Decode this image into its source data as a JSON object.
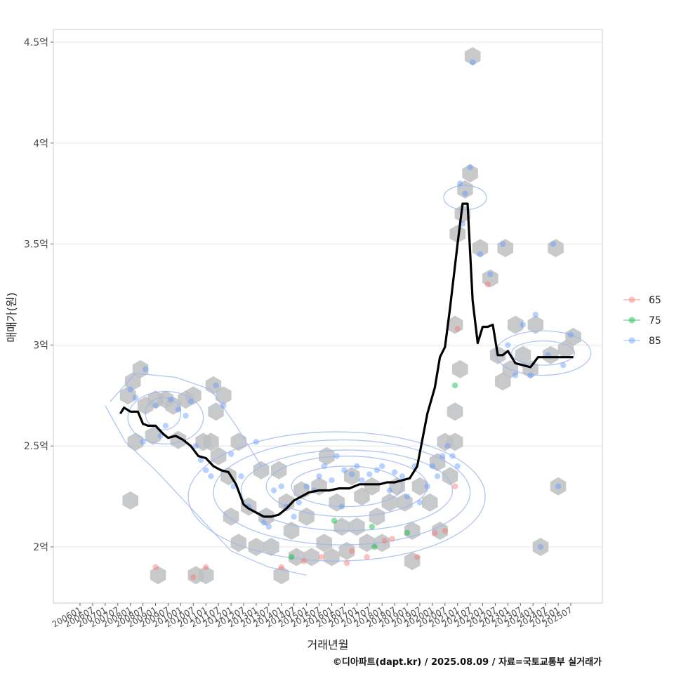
{
  "chart_data": {
    "type": "scatter",
    "title": "",
    "xlabel": "거래년월",
    "ylabel": "매매가(원)",
    "caption": "©디아파트(dapt.kr) / 2025.08.09 / 자료=국토교통부 실거래가",
    "ylim": [
      1.75,
      4.5
    ],
    "yticks": [
      {
        "value": 2.0,
        "label": "2억"
      },
      {
        "value": 2.5,
        "label": "2.5억"
      },
      {
        "value": 3.0,
        "label": "3억"
      },
      {
        "value": 3.5,
        "label": "3.5억"
      },
      {
        "value": 4.0,
        "label": "4억"
      },
      {
        "value": 4.5,
        "label": "4.5억"
      }
    ],
    "xlim": [
      2005.5,
      2027.0
    ],
    "xticks": [
      "200601",
      "200607",
      "200701",
      "200707",
      "200801",
      "200807",
      "200901",
      "200907",
      "201001",
      "201007",
      "201101",
      "201107",
      "201201",
      "201207",
      "201301",
      "201307",
      "201401",
      "201407",
      "201501",
      "201507",
      "201601",
      "201607",
      "201701",
      "201707",
      "201801",
      "201807",
      "201901",
      "201907",
      "202001",
      "202007",
      "202101",
      "202107",
      "202201",
      "202207",
      "202301",
      "202307",
      "202401",
      "202407",
      "202501",
      "202507"
    ],
    "legend": {
      "title": "",
      "position": "right",
      "entries": [
        {
          "label": "65",
          "color": "#F8766D"
        },
        {
          "label": "75",
          "color": "#00BA38"
        },
        {
          "label": "85",
          "color": "#619CFF"
        }
      ]
    },
    "colors": {
      "hex": "#bdbfc2",
      "trend": "#000000",
      "contour": "#9fb5ee",
      "grid": "#e6e6e6"
    },
    "trend_line": {
      "name": "median",
      "x": [
        2007.6,
        2007.75,
        2008.0,
        2008.3,
        2008.5,
        2008.7,
        2009.0,
        2009.3,
        2009.5,
        2009.8,
        2010.1,
        2010.4,
        2010.7,
        2011.0,
        2011.3,
        2011.6,
        2011.9,
        2012.2,
        2012.5,
        2012.7,
        2013.0,
        2013.3,
        2013.6,
        2013.9,
        2014.2,
        2014.5,
        2014.8,
        2015.1,
        2015.5,
        2015.9,
        2016.3,
        2016.7,
        2017.1,
        2017.5,
        2017.9,
        2018.2,
        2018.5,
        2018.8,
        2019.1,
        2019.4,
        2019.8,
        2020.1,
        2020.3,
        2020.5,
        2020.7,
        2021.0,
        2021.2,
        2021.4,
        2021.6,
        2021.8,
        2022.0,
        2022.2,
        2022.4,
        2022.6,
        2022.8,
        2023.0,
        2023.3,
        2023.6,
        2023.9,
        2024.2,
        2024.5,
        2024.8,
        2025.1,
        2025.4,
        2025.6
      ],
      "values": [
        2.66,
        2.69,
        2.67,
        2.67,
        2.61,
        2.6,
        2.6,
        2.56,
        2.54,
        2.55,
        2.53,
        2.5,
        2.45,
        2.44,
        2.4,
        2.38,
        2.37,
        2.31,
        2.21,
        2.19,
        2.17,
        2.15,
        2.15,
        2.16,
        2.19,
        2.23,
        2.25,
        2.27,
        2.28,
        2.28,
        2.29,
        2.29,
        2.31,
        2.31,
        2.31,
        2.32,
        2.32,
        2.33,
        2.34,
        2.4,
        2.66,
        2.79,
        2.94,
        2.99,
        3.18,
        3.5,
        3.7,
        3.7,
        3.22,
        3.01,
        3.09,
        3.09,
        3.1,
        2.95,
        2.95,
        2.97,
        2.91,
        2.9,
        2.89,
        2.94,
        2.94,
        2.94,
        2.94,
        2.94,
        2.94
      ]
    },
    "series": [
      {
        "name": "65",
        "points": [
          [
            2009.0,
            1.9
          ],
          [
            2010.5,
            1.85
          ],
          [
            2011.0,
            1.9
          ],
          [
            2014.0,
            1.9
          ],
          [
            2014.9,
            1.93
          ],
          [
            2015.6,
            1.95
          ],
          [
            2016.6,
            1.92
          ],
          [
            2016.8,
            1.98
          ],
          [
            2017.4,
            1.95
          ],
          [
            2018.1,
            2.03
          ],
          [
            2018.4,
            2.04
          ],
          [
            2019.4,
            1.95
          ],
          [
            2020.1,
            2.07
          ],
          [
            2020.5,
            2.08
          ],
          [
            2020.9,
            2.3
          ],
          [
            2021.0,
            3.08
          ],
          [
            2022.2,
            3.3
          ]
        ]
      },
      {
        "name": "75",
        "points": [
          [
            2014.4,
            1.95
          ],
          [
            2016.1,
            2.13
          ],
          [
            2017.6,
            2.1
          ],
          [
            2017.7,
            2.0
          ],
          [
            2019.0,
            2.07
          ],
          [
            2020.9,
            2.8
          ]
        ]
      },
      {
        "name": "85",
        "points": [
          [
            2008.0,
            2.78
          ],
          [
            2008.2,
            2.74
          ],
          [
            2008.5,
            2.52
          ],
          [
            2008.6,
            2.88
          ],
          [
            2009.0,
            2.7
          ],
          [
            2009.2,
            2.55
          ],
          [
            2009.4,
            2.6
          ],
          [
            2009.6,
            2.73
          ],
          [
            2009.9,
            2.68
          ],
          [
            2010.2,
            2.65
          ],
          [
            2010.4,
            2.72
          ],
          [
            2010.6,
            2.5
          ],
          [
            2010.8,
            2.43
          ],
          [
            2011.0,
            2.38
          ],
          [
            2011.2,
            2.35
          ],
          [
            2011.4,
            2.8
          ],
          [
            2011.7,
            2.7
          ],
          [
            2012.0,
            2.46
          ],
          [
            2012.1,
            2.3
          ],
          [
            2012.4,
            2.35
          ],
          [
            2012.7,
            2.2
          ],
          [
            2013.0,
            2.52
          ],
          [
            2013.3,
            2.12
          ],
          [
            2013.5,
            2.1
          ],
          [
            2013.7,
            2.28
          ],
          [
            2014.0,
            2.3
          ],
          [
            2014.2,
            2.2
          ],
          [
            2014.5,
            2.15
          ],
          [
            2014.7,
            2.22
          ],
          [
            2015.0,
            2.3
          ],
          [
            2015.3,
            2.28
          ],
          [
            2015.5,
            2.35
          ],
          [
            2015.7,
            2.4
          ],
          [
            2016.0,
            2.33
          ],
          [
            2016.2,
            2.45
          ],
          [
            2016.4,
            2.2
          ],
          [
            2016.5,
            2.38
          ],
          [
            2016.8,
            2.36
          ],
          [
            2017.0,
            2.4
          ],
          [
            2017.2,
            2.33
          ],
          [
            2017.5,
            2.36
          ],
          [
            2017.8,
            2.38
          ],
          [
            2018.0,
            2.4
          ],
          [
            2018.3,
            2.28
          ],
          [
            2018.5,
            2.37
          ],
          [
            2018.8,
            2.35
          ],
          [
            2019.0,
            2.25
          ],
          [
            2019.3,
            2.4
          ],
          [
            2019.5,
            2.22
          ],
          [
            2019.8,
            2.3
          ],
          [
            2020.0,
            2.4
          ],
          [
            2020.2,
            2.35
          ],
          [
            2020.4,
            2.45
          ],
          [
            2020.6,
            2.5
          ],
          [
            2020.8,
            2.45
          ],
          [
            2021.0,
            2.4
          ],
          [
            2021.1,
            3.8
          ],
          [
            2021.2,
            3.6
          ],
          [
            2021.3,
            3.75
          ],
          [
            2021.5,
            3.88
          ],
          [
            2021.6,
            4.4
          ],
          [
            2021.9,
            3.45
          ],
          [
            2022.3,
            3.35
          ],
          [
            2022.8,
            3.5
          ],
          [
            2023.0,
            3.0
          ],
          [
            2023.3,
            2.85
          ],
          [
            2023.6,
            3.1
          ],
          [
            2023.9,
            2.85
          ],
          [
            2024.1,
            3.15
          ],
          [
            2024.3,
            2.0
          ],
          [
            2024.6,
            2.95
          ],
          [
            2024.8,
            3.5
          ],
          [
            2025.0,
            2.3
          ],
          [
            2025.2,
            2.9
          ],
          [
            2025.5,
            3.05
          ]
        ]
      }
    ],
    "hex_bins": [
      [
        2007.9,
        2.75
      ],
      [
        2008.1,
        2.82
      ],
      [
        2008.2,
        2.52
      ],
      [
        2008.4,
        2.88
      ],
      [
        2008.0,
        2.23
      ],
      [
        2008.6,
        2.7
      ],
      [
        2008.9,
        2.55
      ],
      [
        2009.0,
        2.73
      ],
      [
        2009.1,
        1.86
      ],
      [
        2009.4,
        2.73
      ],
      [
        2009.7,
        2.7
      ],
      [
        2009.9,
        2.53
      ],
      [
        2010.2,
        2.73
      ],
      [
        2010.5,
        2.75
      ],
      [
        2010.6,
        1.86
      ],
      [
        2010.9,
        2.52
      ],
      [
        2011.0,
        1.86
      ],
      [
        2011.2,
        2.52
      ],
      [
        2011.3,
        2.8
      ],
      [
        2011.4,
        2.67
      ],
      [
        2011.5,
        2.45
      ],
      [
        2011.7,
        2.75
      ],
      [
        2011.9,
        2.35
      ],
      [
        2012.3,
        2.52
      ],
      [
        2012.0,
        2.15
      ],
      [
        2012.3,
        2.02
      ],
      [
        2012.7,
        2.2
      ],
      [
        2013.0,
        2.0
      ],
      [
        2013.2,
        2.38
      ],
      [
        2013.4,
        2.15
      ],
      [
        2013.6,
        2.0
      ],
      [
        2013.9,
        2.38
      ],
      [
        2014.0,
        1.86
      ],
      [
        2014.2,
        2.22
      ],
      [
        2014.4,
        2.08
      ],
      [
        2014.6,
        1.95
      ],
      [
        2014.8,
        2.28
      ],
      [
        2015.0,
        2.15
      ],
      [
        2015.2,
        1.95
      ],
      [
        2015.5,
        2.3
      ],
      [
        2015.7,
        2.02
      ],
      [
        2015.8,
        2.45
      ],
      [
        2016.0,
        1.95
      ],
      [
        2016.2,
        2.22
      ],
      [
        2016.4,
        2.1
      ],
      [
        2016.6,
        1.98
      ],
      [
        2016.8,
        2.35
      ],
      [
        2017.0,
        2.1
      ],
      [
        2017.2,
        2.25
      ],
      [
        2017.4,
        2.02
      ],
      [
        2017.6,
        2.3
      ],
      [
        2017.8,
        2.15
      ],
      [
        2018.0,
        2.02
      ],
      [
        2018.3,
        2.22
      ],
      [
        2018.6,
        2.3
      ],
      [
        2018.9,
        2.22
      ],
      [
        2019.2,
        2.08
      ],
      [
        2019.2,
        1.93
      ],
      [
        2019.5,
        2.3
      ],
      [
        2019.9,
        2.22
      ],
      [
        2020.2,
        2.42
      ],
      [
        2020.3,
        2.08
      ],
      [
        2020.5,
        2.52
      ],
      [
        2020.7,
        2.35
      ],
      [
        2020.9,
        2.52
      ],
      [
        2020.9,
        3.1
      ],
      [
        2020.9,
        2.67
      ],
      [
        2021.1,
        2.88
      ],
      [
        2021.0,
        3.55
      ],
      [
        2021.2,
        3.65
      ],
      [
        2021.3,
        3.77
      ],
      [
        2021.5,
        3.85
      ],
      [
        2021.6,
        4.43
      ],
      [
        2021.9,
        3.48
      ],
      [
        2022.3,
        3.33
      ],
      [
        2022.9,
        3.48
      ],
      [
        2022.6,
        2.95
      ],
      [
        2022.8,
        2.82
      ],
      [
        2023.1,
        2.88
      ],
      [
        2023.3,
        3.1
      ],
      [
        2023.6,
        2.95
      ],
      [
        2023.9,
        2.88
      ],
      [
        2024.1,
        3.1
      ],
      [
        2024.3,
        2.0
      ],
      [
        2024.7,
        2.95
      ],
      [
        2024.9,
        3.48
      ],
      [
        2025.0,
        2.3
      ],
      [
        2025.3,
        2.98
      ],
      [
        2025.6,
        3.04
      ]
    ],
    "contours": [
      {
        "cx": 2016.6,
        "cy": 2.3,
        "rx": 2.2,
        "ry": 0.1
      },
      {
        "cx": 2016.6,
        "cy": 2.3,
        "rx": 3.2,
        "ry": 0.15
      },
      {
        "cx": 2016.6,
        "cy": 2.28,
        "rx": 4.2,
        "ry": 0.2
      },
      {
        "cx": 2016.4,
        "cy": 2.27,
        "rx": 5.1,
        "ry": 0.26
      },
      {
        "cx": 2016.2,
        "cy": 2.25,
        "rx": 5.9,
        "ry": 0.32
      },
      {
        "cx": 2009.3,
        "cy": 2.66,
        "rx": 0.7,
        "ry": 0.08
      },
      {
        "cx": 2009.4,
        "cy": 2.64,
        "rx": 1.5,
        "ry": 0.13
      },
      {
        "cx": 2021.3,
        "cy": 3.73,
        "rx": 0.85,
        "ry": 0.06
      },
      {
        "cx": 2024.4,
        "cy": 2.96,
        "rx": 1.9,
        "ry": 0.11
      },
      {
        "cx": 2024.4,
        "cy": 2.96,
        "rx": 1.25,
        "ry": 0.06
      }
    ],
    "contour_wings": [
      [
        [
          2007.2,
          2.72
        ],
        [
          2008.2,
          2.86
        ],
        [
          2009.8,
          2.84
        ],
        [
          2011.2,
          2.78
        ],
        [
          2012.2,
          2.6
        ],
        [
          2013.2,
          2.4
        ]
      ],
      [
        [
          2007.0,
          2.7
        ],
        [
          2007.8,
          2.52
        ],
        [
          2009.0,
          2.38
        ],
        [
          2010.5,
          2.18
        ],
        [
          2012.0,
          1.98
        ],
        [
          2013.5,
          1.9
        ],
        [
          2015.0,
          1.86
        ]
      ]
    ]
  }
}
